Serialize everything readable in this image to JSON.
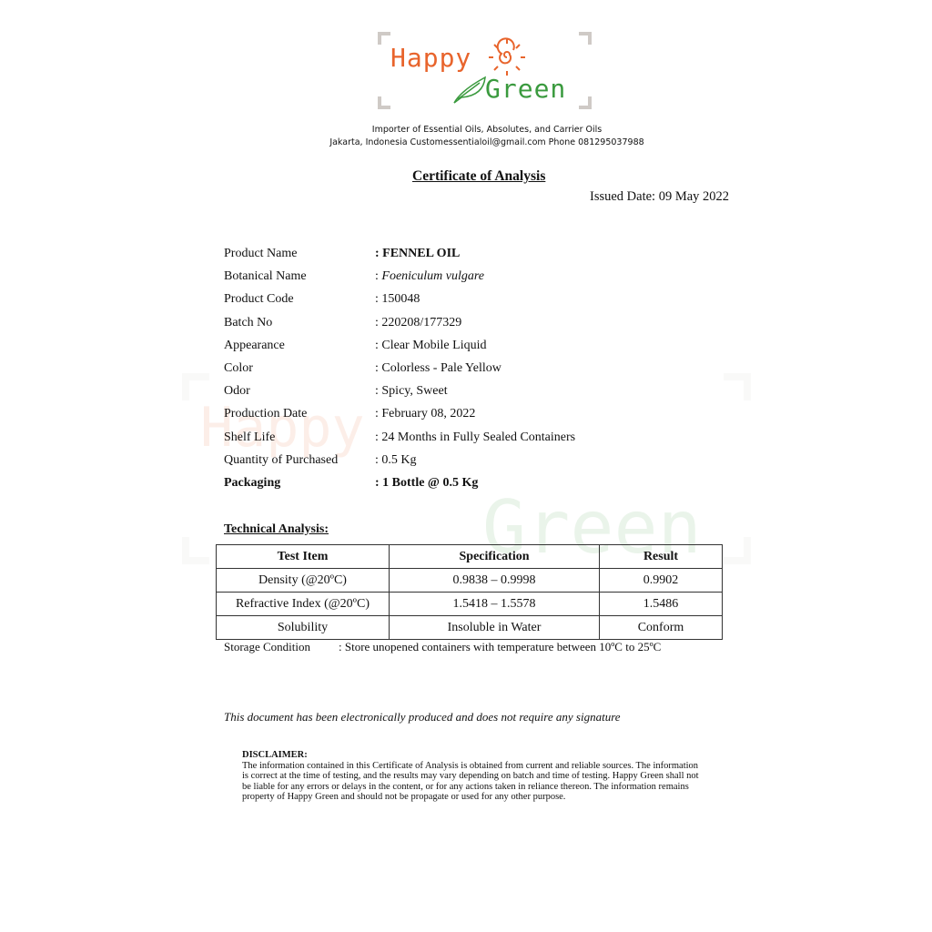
{
  "header": {
    "logo_word1": "Happy",
    "logo_word2": "Green",
    "tagline": "Importer of Essential Oils, Absolutes, and Carrier Oils",
    "contact": "Jakarta, Indonesia Customessentialoil@gmail.com Phone 081295037988"
  },
  "title": "Certificate of Analysis",
  "issued": "Issued Date: 09 May 2022",
  "info": [
    {
      "label": "Product Name",
      "value": ": FENNEL OIL"
    },
    {
      "label": "Botanical Name",
      "value": ": ",
      "value_italic": "Foeniculum vulgare"
    },
    {
      "label": "Product Code",
      "value": ": 150048"
    },
    {
      "label": "Batch No",
      "value": ": 220208/177329"
    },
    {
      "label": "Appearance",
      "value": ": Clear Mobile Liquid"
    },
    {
      "label": "Color",
      "value": ": Colorless - Pale Yellow"
    },
    {
      "label": "Odor",
      "value": ": Spicy, Sweet"
    },
    {
      "label": "Production Date",
      "value": ": February 08, 2022"
    },
    {
      "label": "Shelf Life",
      "value": ": 24 Months in Fully Sealed Containers"
    },
    {
      "label": "Quantity of Purchased",
      "value": ": 0.5 Kg"
    },
    {
      "label": "Packaging",
      "value": ": 1 Bottle @ 0.5 Kg"
    }
  ],
  "technical": {
    "heading": "Technical Analysis:",
    "headers": [
      "Test Item",
      "Specification",
      "Result"
    ],
    "rows": [
      [
        "Density (@20ºC)",
        "0.9838 – 0.9998",
        "0.9902"
      ],
      [
        "Refractive Index (@20ºC)",
        "1.5418 – 1.5578",
        "1.5486"
      ],
      [
        "Solubility",
        "Insoluble in Water",
        "Conform"
      ]
    ]
  },
  "storage": {
    "label": "Storage Condition",
    "value": ": Store unopened containers with temperature between 10ºC to 25ºC"
  },
  "note": "This document has been electronically produced and does not require any signature",
  "disclaimer": {
    "heading": "DISCLAIMER:",
    "text": "The information contained in this Certificate of Analysis is obtained from current and reliable sources. The information is correct at the time of testing, and the results may vary depending on batch and time of testing.  Happy Green shall not be liable for any errors or delays in the content, or for any actions taken in reliance thereon. The information remains property of Happy Green and should not be propagate or used for any other purpose."
  },
  "colors": {
    "orange": "#e8642c",
    "green": "#3a9a3e"
  }
}
